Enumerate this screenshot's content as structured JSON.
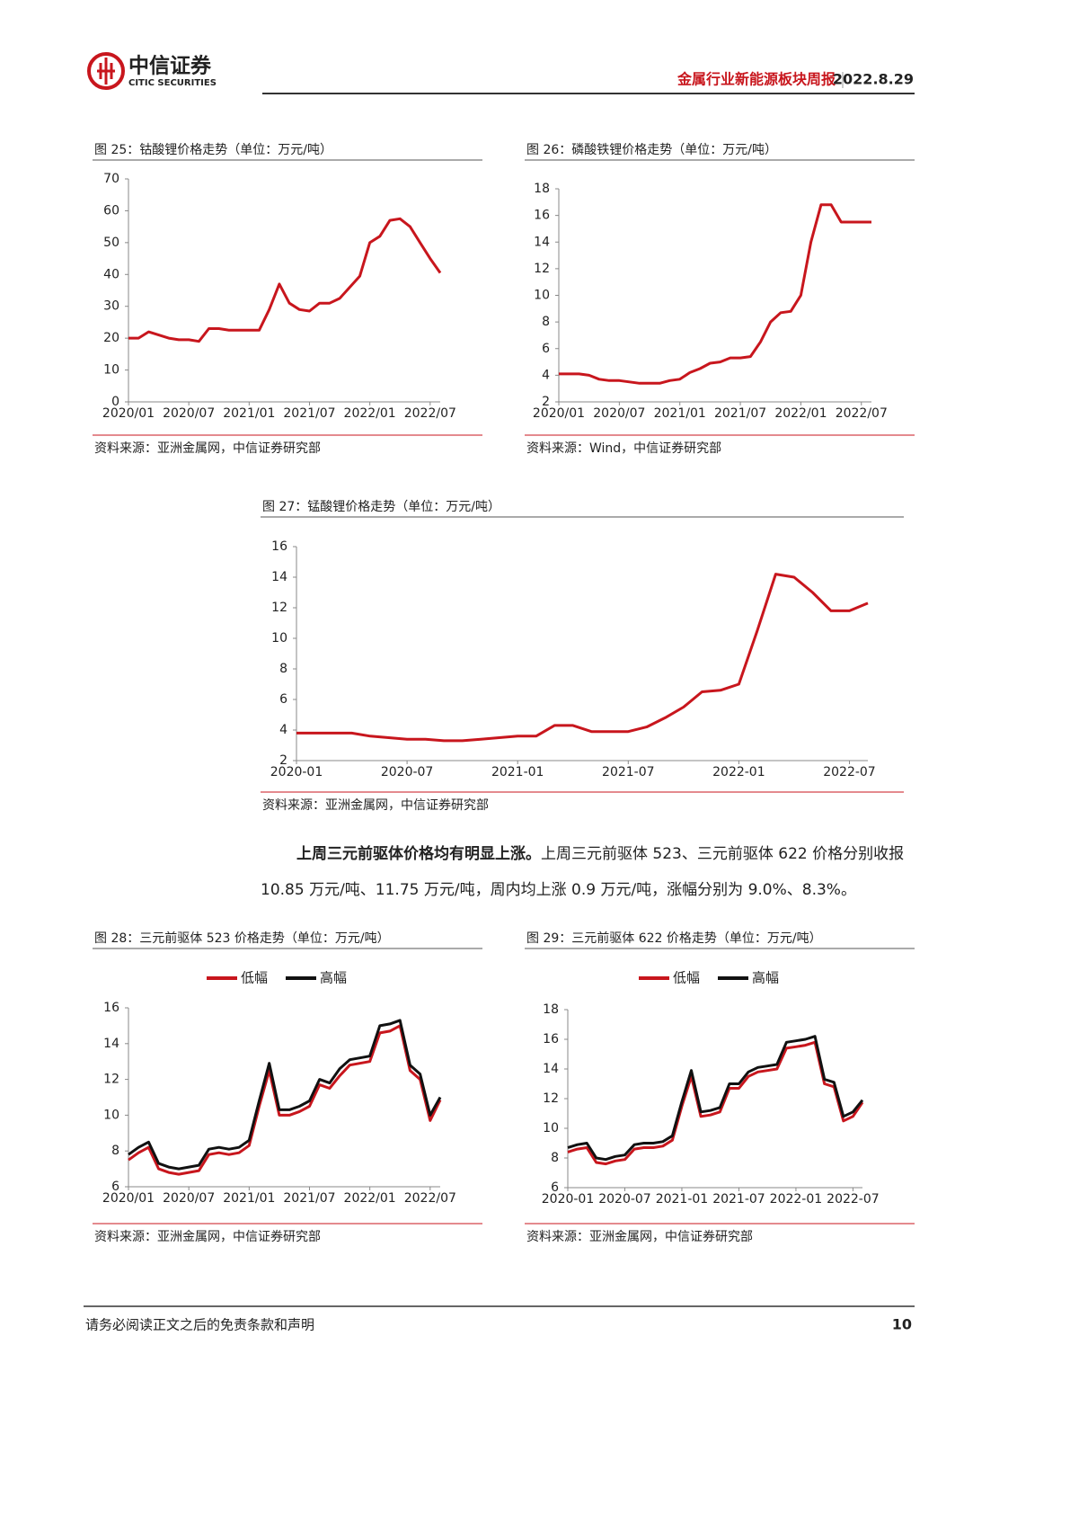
{
  "header": {
    "logo": "中信证券",
    "logo_en": "CITIC SECURITIES",
    "report": "金属行业新能源板块周报",
    "date": "2022.8.29"
  },
  "chart_data": [
    {
      "type": "line",
      "title": "图 25：钴酸锂价格走势（单位：万元/吨）",
      "source": "资料来源：亚洲金属网，中信证券研究部",
      "color": "#c8161d",
      "categories": [
        "2020/01",
        "2020/02",
        "2020/03",
        "2020/04",
        "2020/05",
        "2020/06",
        "2020/07",
        "2020/08",
        "2020/09",
        "2020/10",
        "2020/11",
        "2020/12",
        "2021/01",
        "2021/02",
        "2021/03",
        "2021/04",
        "2021/05",
        "2021/06",
        "2021/07",
        "2021/08",
        "2021/09",
        "2021/10",
        "2021/11",
        "2021/12",
        "2022/01",
        "2022/02",
        "2022/03",
        "2022/04",
        "2022/05",
        "2022/06",
        "2022/07",
        "2022/08"
      ],
      "values": [
        20,
        20,
        22,
        21,
        20,
        19.5,
        19.5,
        19,
        23,
        23,
        22.5,
        22.5,
        22.5,
        22.5,
        29,
        37,
        31,
        29,
        28.5,
        31,
        31,
        32.5,
        36,
        39.5,
        50,
        52,
        57,
        57.5,
        55,
        50,
        45,
        40.5
      ],
      "xticks": [
        "2020/01",
        "2020/07",
        "2021/01",
        "2021/07",
        "2022/01",
        "2022/07"
      ],
      "ylim": [
        0,
        70
      ],
      "yticks": [
        0,
        10,
        20,
        30,
        40,
        50,
        60,
        70
      ]
    },
    {
      "type": "line",
      "title": "图 26：磷酸铁锂价格走势（单位：万元/吨）",
      "source": "资料来源：Wind，中信证券研究部",
      "color": "#c8161d",
      "categories": [
        "2020/01",
        "2020/02",
        "2020/03",
        "2020/04",
        "2020/05",
        "2020/06",
        "2020/07",
        "2020/08",
        "2020/09",
        "2020/10",
        "2020/11",
        "2020/12",
        "2021/01",
        "2021/02",
        "2021/03",
        "2021/04",
        "2021/05",
        "2021/06",
        "2021/07",
        "2021/08",
        "2021/09",
        "2021/10",
        "2021/11",
        "2021/12",
        "2022/01",
        "2022/02",
        "2022/03",
        "2022/04",
        "2022/05",
        "2022/06",
        "2022/07",
        "2022/08"
      ],
      "values": [
        4.1,
        4.1,
        4.1,
        4.0,
        3.7,
        3.6,
        3.6,
        3.5,
        3.4,
        3.4,
        3.4,
        3.6,
        3.7,
        4.2,
        4.5,
        4.9,
        5.0,
        5.3,
        5.3,
        5.4,
        6.5,
        8.0,
        8.7,
        8.8,
        10,
        14,
        16.8,
        16.8,
        15.5,
        15.5,
        15.5,
        15.5
      ],
      "xticks": [
        "2020/01",
        "2020/07",
        "2021/01",
        "2021/07",
        "2022/01",
        "2022/07"
      ],
      "ylim": [
        2,
        18
      ],
      "yticks": [
        2,
        4,
        6,
        8,
        10,
        12,
        14,
        16,
        18
      ]
    },
    {
      "type": "line",
      "title": "图 27：锰酸锂价格走势（单位：万元/吨）",
      "source": "资料来源：亚洲金属网，中信证券研究部",
      "color": "#c8161d",
      "categories": [
        "2020-01",
        "2020-02",
        "2020-03",
        "2020-04",
        "2020-05",
        "2020-06",
        "2020-07",
        "2020-08",
        "2020-09",
        "2020-10",
        "2020-11",
        "2020-12",
        "2021-01",
        "2021-02",
        "2021-03",
        "2021-04",
        "2021-05",
        "2021-06",
        "2021-07",
        "2021-08",
        "2021-09",
        "2021-10",
        "2021-11",
        "2021-12",
        "2022-01",
        "2022-02",
        "2022-03",
        "2022-04",
        "2022-05",
        "2022-06",
        "2022-07",
        "2022-08"
      ],
      "values": [
        3.8,
        3.8,
        3.8,
        3.8,
        3.6,
        3.5,
        3.4,
        3.4,
        3.3,
        3.3,
        3.4,
        3.5,
        3.6,
        3.6,
        4.3,
        4.3,
        3.9,
        3.9,
        3.9,
        4.2,
        4.8,
        5.5,
        6.5,
        6.6,
        7.0,
        10.5,
        14.2,
        14.0,
        13.0,
        11.8,
        11.8,
        12.3
      ],
      "xticks": [
        "2020-01",
        "2020-07",
        "2021-01",
        "2021-07",
        "2022-01",
        "2022-07"
      ],
      "ylim": [
        2,
        16
      ],
      "yticks": [
        2,
        4,
        6,
        8,
        10,
        12,
        14,
        16
      ]
    },
    {
      "type": "line",
      "title": "图 28：三元前驱体 523 价格走势（单位：万元/吨）",
      "source": "资料来源：亚洲金属网，中信证券研究部",
      "categories": [
        "2020/01",
        "2020/02",
        "2020/03",
        "2020/04",
        "2020/05",
        "2020/06",
        "2020/07",
        "2020/08",
        "2020/09",
        "2020/10",
        "2020/11",
        "2020/12",
        "2021/01",
        "2021/02",
        "2021/03",
        "2021/04",
        "2021/05",
        "2021/06",
        "2021/07",
        "2021/08",
        "2021/09",
        "2021/10",
        "2021/11",
        "2021/12",
        "2022/01",
        "2022/02",
        "2022/03",
        "2022/04",
        "2022/05",
        "2022/06",
        "2022/07",
        "2022/08"
      ],
      "series": [
        {
          "name": "低幅",
          "color": "#c8161d",
          "values": [
            7.5,
            7.9,
            8.2,
            7.0,
            6.8,
            6.7,
            6.8,
            6.9,
            7.8,
            7.9,
            7.8,
            7.9,
            8.3,
            10.5,
            12.5,
            10.0,
            10.0,
            10.2,
            10.5,
            11.7,
            11.5,
            12.2,
            12.8,
            12.9,
            13.0,
            14.6,
            14.7,
            15.0,
            12.5,
            12.0,
            9.7,
            10.85
          ]
        },
        {
          "name": "高幅",
          "color": "#111111",
          "values": [
            7.8,
            8.2,
            8.5,
            7.3,
            7.1,
            7.0,
            7.1,
            7.2,
            8.1,
            8.2,
            8.1,
            8.2,
            8.6,
            10.8,
            12.9,
            10.3,
            10.3,
            10.5,
            10.8,
            12.0,
            11.8,
            12.6,
            13.1,
            13.2,
            13.3,
            15.0,
            15.1,
            15.3,
            12.8,
            12.3,
            10.0,
            11.0
          ]
        }
      ],
      "xticks": [
        "2020/01",
        "2020/07",
        "2021/01",
        "2021/07",
        "2022/01",
        "2022/07"
      ],
      "ylim": [
        6,
        16
      ],
      "yticks": [
        6,
        8,
        10,
        12,
        14,
        16
      ]
    },
    {
      "type": "line",
      "title": "图 29：三元前驱体 622 价格走势（单位：万元/吨）",
      "source": "资料来源：亚洲金属网，中信证券研究部",
      "categories": [
        "2020-01",
        "2020-02",
        "2020-03",
        "2020-04",
        "2020-05",
        "2020-06",
        "2020-07",
        "2020-08",
        "2020-09",
        "2020-10",
        "2020-11",
        "2020-12",
        "2021-01",
        "2021-02",
        "2021-03",
        "2021-04",
        "2021-05",
        "2021-06",
        "2021-07",
        "2021-08",
        "2021-09",
        "2021-10",
        "2021-11",
        "2021-12",
        "2022-01",
        "2022-02",
        "2022-03",
        "2022-04",
        "2022-05",
        "2022-06",
        "2022-07",
        "2022-08"
      ],
      "series": [
        {
          "name": "低幅",
          "color": "#c8161d",
          "values": [
            8.4,
            8.6,
            8.7,
            7.7,
            7.6,
            7.8,
            7.9,
            8.6,
            8.7,
            8.7,
            8.8,
            9.2,
            11.5,
            13.5,
            10.8,
            10.9,
            11.1,
            12.7,
            12.7,
            13.5,
            13.8,
            13.9,
            14.0,
            15.4,
            15.5,
            15.6,
            15.8,
            13.0,
            12.8,
            10.5,
            10.8,
            11.75
          ]
        },
        {
          "name": "高幅",
          "color": "#111111",
          "values": [
            8.7,
            8.9,
            9.0,
            8.0,
            7.9,
            8.1,
            8.2,
            8.9,
            9.0,
            9.0,
            9.1,
            9.5,
            11.8,
            13.9,
            11.1,
            11.2,
            11.4,
            13.0,
            13.0,
            13.8,
            14.1,
            14.2,
            14.3,
            15.8,
            15.9,
            16.0,
            16.2,
            13.3,
            13.1,
            10.8,
            11.1,
            11.9
          ]
        }
      ],
      "xticks": [
        "2020-01",
        "2020-07",
        "2021-01",
        "2021-07",
        "2022-01",
        "2022-07"
      ],
      "ylim": [
        6,
        18
      ],
      "yticks": [
        6,
        8,
        10,
        12,
        14,
        16,
        18
      ]
    }
  ],
  "paragraph": {
    "lead": "上周三元前驱体价格均有明显上涨。",
    "body": "上周三元前驱体 523、三元前驱体 622 价格分别收报 10.85 万元/吨、11.75 万元/吨，周内均上涨 0.9 万元/吨，涨幅分别为 9.0%、8.3%。"
  },
  "footer": {
    "disclaimer": "请务必阅读正文之后的免责条款和声明",
    "page": "10"
  }
}
